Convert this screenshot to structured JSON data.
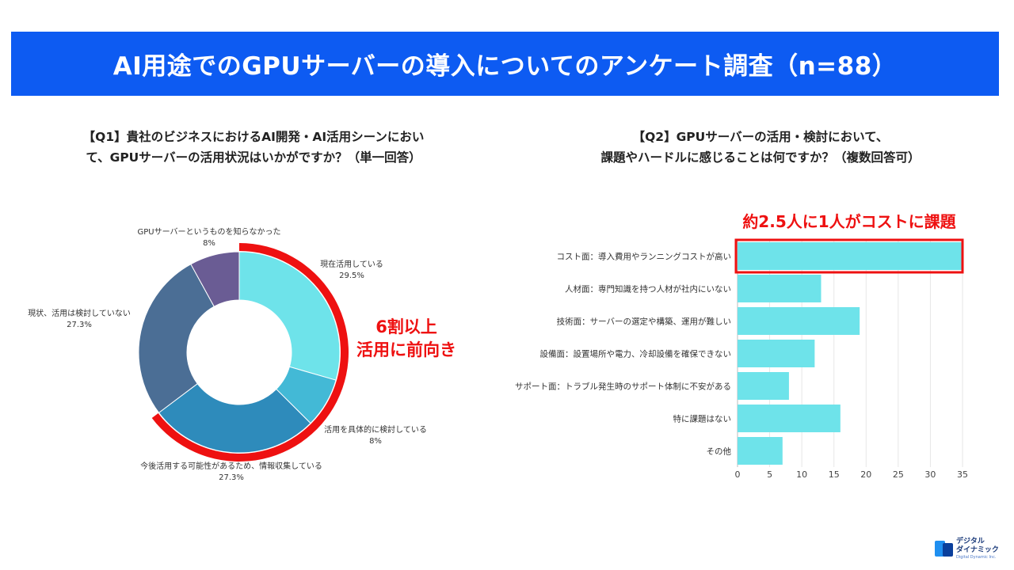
{
  "header": {
    "title": "AI用途でのGPUサーバーの導入についてのアンケート調査（n=88）"
  },
  "q1": {
    "title_line1": "【Q1】貴社のビジネスにおけるAI開発・AI活用シーンにおい",
    "title_line2": "て、GPUサーバーの活用状況はいかがですか？（単一回答）",
    "callout_line1": "6割以上",
    "callout_line2": "活用に前向き"
  },
  "q2": {
    "title_line1": "【Q2】GPUサーバーの活用・検討において、",
    "title_line2": "課題やハードルに感じることは何ですか？（複数回答可）",
    "callout": "約2.5人に1人がコストに課題"
  },
  "logo": {
    "line1": "デジタル",
    "line2": "ダイナミック",
    "line3": "Digital Dynamic Inc."
  },
  "colors": {
    "banner": "#0d5bf2",
    "highlight": "#ee1111",
    "bar": "#6ee3ea"
  },
  "chart_data": [
    {
      "type": "pie",
      "variant": "donut",
      "title": "【Q1】貴社のビジネスにおけるAI開発・AI活用シーンにおいて、GPUサーバーの活用状況はいかがですか？（単一回答）",
      "slices": [
        {
          "label": "現在活用している",
          "value": 29.5,
          "value_label": "29.5%",
          "color": "#6ee3ea"
        },
        {
          "label": "活用を具体的に検討している",
          "value": 8,
          "value_label": "8%",
          "color": "#43b9d6"
        },
        {
          "label": "今後活用する可能性があるため、情報収集している",
          "value": 27.3,
          "value_label": "27.3%",
          "color": "#2e8bbb"
        },
        {
          "label": "現状、活用は検討していない",
          "value": 27.3,
          "value_label": "27.3%",
          "color": "#4b6e95"
        },
        {
          "label": "GPUサーバーというものを知らなかった",
          "value": 8,
          "value_label": "8%",
          "color": "#6a5c94"
        }
      ],
      "highlighted_slices": [
        0,
        1,
        2
      ]
    },
    {
      "type": "bar",
      "orientation": "horizontal",
      "title": "【Q2】GPUサーバーの活用・検討において、課題やハードルに感じることは何ですか？（複数回答可）",
      "categories": [
        "コスト面：導入費用やランニングコストが高い",
        "人材面：専門知識を持つ人材が社内にいない",
        "技術面：サーバーの選定や構築、運用が難しい",
        "設備面：設置場所や電力、冷却設備を確保できない",
        "サポート面：トラブル発生時のサポート体制に不安がある",
        "特に課題はない",
        "その他"
      ],
      "values": [
        35,
        13,
        19,
        12,
        8,
        16,
        7
      ],
      "xlim": [
        0,
        35
      ],
      "xticks": [
        "0",
        "5",
        "10",
        "15",
        "20",
        "25",
        "30",
        "35"
      ],
      "grid": true,
      "highlighted_index": 0
    }
  ]
}
